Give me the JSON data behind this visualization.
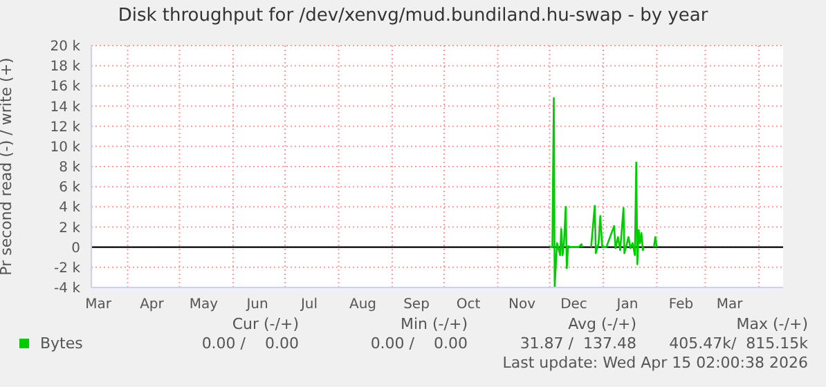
{
  "chart_data": {
    "type": "line",
    "title": "Disk throughput for /dev/xenvg/mud.bundiland.hu-swap - by year",
    "ylabel": "Pr second read (-) / write (+)",
    "x": [
      "2025-12-01T00:00",
      "2025-12-02T14:00",
      "2025-12-03T10:00",
      "2025-12-03T22:00",
      "2025-12-05T07:00",
      "2025-12-07T02:00",
      "2025-12-07T17:00",
      "2025-12-08T12:00",
      "2025-12-09T07:00",
      "2025-12-10T07:00",
      "2025-12-10T22:00",
      "2025-12-11T17:00",
      "2025-12-13T07:00",
      "2025-12-17T19:00",
      "2025-12-19T10:00",
      "2025-12-19T22:00",
      "2025-12-21T12:00",
      "2025-12-25T00:00",
      "2025-12-27T02:00",
      "2025-12-27T17:00",
      "2025-12-29T07:00",
      "2025-12-30T07:00",
      "2025-12-31T10:00",
      "2026-01-02T19:00",
      "2026-01-07T07:00",
      "2026-01-08T02:00",
      "2026-01-09T12:00",
      "2026-01-10T19:00",
      "2026-01-12T17:00",
      "2026-01-13T05:00",
      "2026-01-14T07:00",
      "2026-01-15T14:00",
      "2026-01-16T17:00",
      "2026-01-18T00:00",
      "2026-01-19T07:00",
      "2026-01-20T02:00",
      "2026-01-20T17:00",
      "2026-01-21T12:00",
      "2026-01-22T07:00",
      "2026-01-23T02:00",
      "2026-01-23T22:00",
      "2026-01-24T10:00",
      "2026-01-26T12:00",
      "2026-01-30T07:00",
      "2026-01-31T02:00",
      "2026-01-31T22:00"
    ],
    "series": [
      {
        "name": "Bytes",
        "color": "#00cc00",
        "values": [
          0,
          0,
          14800,
          -3900,
          400,
          -800,
          1800,
          -800,
          400,
          4000,
          -2100,
          100,
          0,
          0,
          300,
          0,
          null,
          0,
          4100,
          -600,
          400,
          3100,
          0,
          0,
          2100,
          -100,
          1000,
          -300,
          3900,
          -600,
          100,
          1000,
          -100,
          400,
          -800,
          8400,
          -1700,
          1700,
          400,
          1400,
          -300,
          0,
          null,
          0,
          1000,
          0
        ]
      }
    ],
    "xlim": [
      "2025-03-11",
      "2026-04-15"
    ],
    "xticks": [
      {
        "value": "2025-03-15",
        "label": "Mar"
      },
      {
        "value": "2025-04-01",
        "label": null
      },
      {
        "value": "2025-04-15",
        "label": "Apr"
      },
      {
        "value": "2025-05-01",
        "label": null
      },
      {
        "value": "2025-05-15",
        "label": "May"
      },
      {
        "value": "2025-06-01",
        "label": null
      },
      {
        "value": "2025-06-15",
        "label": "Jun"
      },
      {
        "value": "2025-07-01",
        "label": null
      },
      {
        "value": "2025-07-15",
        "label": "Jul"
      },
      {
        "value": "2025-08-01",
        "label": null
      },
      {
        "value": "2025-08-15",
        "label": "Aug"
      },
      {
        "value": "2025-09-01",
        "label": null
      },
      {
        "value": "2025-09-15",
        "label": "Sep"
      },
      {
        "value": "2025-10-01",
        "label": null
      },
      {
        "value": "2025-10-15",
        "label": "Oct"
      },
      {
        "value": "2025-11-01",
        "label": null
      },
      {
        "value": "2025-11-15",
        "label": "Nov"
      },
      {
        "value": "2025-12-01",
        "label": null
      },
      {
        "value": "2025-12-15",
        "label": "Dec"
      },
      {
        "value": "2026-01-01",
        "label": null
      },
      {
        "value": "2026-01-15",
        "label": "Jan"
      },
      {
        "value": "2026-02-01",
        "label": null
      },
      {
        "value": "2026-02-15",
        "label": "Feb"
      },
      {
        "value": "2026-03-01",
        "label": null
      },
      {
        "value": "2026-03-15",
        "label": "Mar"
      },
      {
        "value": "2026-04-01",
        "label": null
      }
    ],
    "ylim": [
      -4000,
      20000
    ],
    "yticks": [
      {
        "value": -4000,
        "label": "-4 k"
      },
      {
        "value": -2000,
        "label": "-2 k"
      },
      0,
      {
        "value": 2000,
        "label": "2 k"
      },
      {
        "value": 4000,
        "label": "4 k"
      },
      {
        "value": 6000,
        "label": "6 k"
      },
      {
        "value": 8000,
        "label": "8 k"
      },
      {
        "value": 10000,
        "label": "10 k"
      },
      {
        "value": 12000,
        "label": "12 k"
      },
      {
        "value": 14000,
        "label": "14 k"
      },
      {
        "value": 16000,
        "label": "16 k"
      },
      {
        "value": 18000,
        "label": "18 k"
      },
      {
        "value": 20000,
        "label": "20 k"
      }
    ],
    "ref_lines": [
      {
        "axis": "y",
        "value": 0,
        "label": null,
        "color": "#000000"
      }
    ],
    "grid": true,
    "legend": "bottom",
    "marker": "none",
    "line_style": "solid",
    "annotations": [
      "Cur (-/+)",
      "Min (-/+)",
      "Avg (-/+)",
      "Max (-/+)",
      "0.00 /    0.00",
      "0.00 /    0.00",
      "31.87 /  137.48",
      "405.47k/  815.15k",
      "Last update: Wed Apr 15 02:00:38 2026"
    ]
  }
}
